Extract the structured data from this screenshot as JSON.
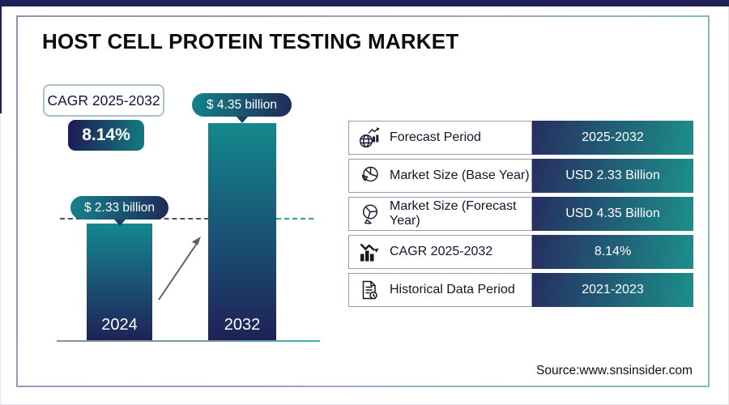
{
  "header": {
    "title": "HOST CELL PROTEIN TESTING MARKET"
  },
  "cagr_callout": {
    "label": "CAGR 2025-2032",
    "value": "8.14%"
  },
  "chart_data": {
    "type": "bar",
    "title": "HOST CELL PROTEIN TESTING MARKET",
    "categories": [
      "2024",
      "2032"
    ],
    "values": [
      2.33,
      4.35
    ],
    "unit": "USD Billion",
    "bar_labels": [
      "$ 2.33 billion",
      "$ 4.35 billion"
    ],
    "ylim": [
      0,
      4.35
    ],
    "grid": false,
    "annotations": [
      "CAGR 2025-2032",
      "8.14%"
    ],
    "reference_line": "dashed line at 2.33 billion level"
  },
  "summary_table": {
    "rows": [
      {
        "icon": "globe-growth-icon",
        "label": "Forecast Period",
        "value": "2025-2032"
      },
      {
        "icon": "pie-chart-icon",
        "label": "Market Size (Base Year)",
        "value": "USD 2.33 Billion"
      },
      {
        "icon": "pie-chart-segment-icon",
        "label": "Market Size (Forecast Year)",
        "value": "USD 4.35 Billion"
      },
      {
        "icon": "bar-chart-trend-icon",
        "label": "CAGR 2025-2032",
        "value": "8.14%"
      },
      {
        "icon": "document-clock-icon",
        "label": "Historical Data Period",
        "value": "2021-2023"
      }
    ]
  },
  "footer": {
    "source": "Source:www.snsinsider.com"
  },
  "colors": {
    "navy": "#1f2057",
    "teal": "#13898b",
    "frame_border_start": "#9294ae",
    "frame_border_end": "#82c1b9"
  }
}
